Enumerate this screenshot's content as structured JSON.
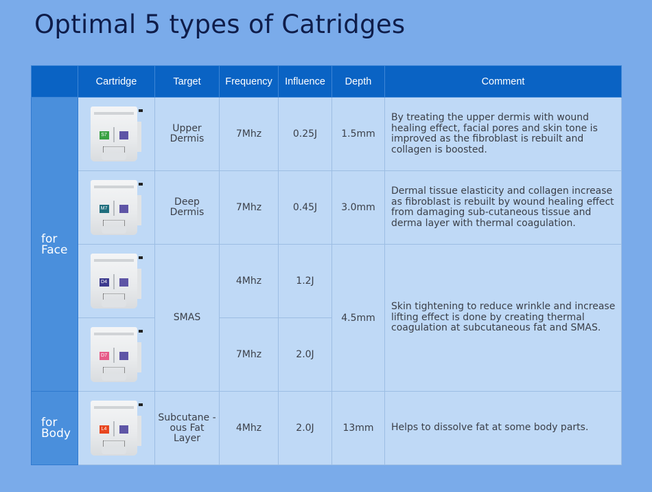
{
  "title": "Optimal 5 types of Catridges",
  "headers": {
    "group": "",
    "cartridge": "Cartridge",
    "target": "Target",
    "frequency": "Frequency",
    "influence": "Influence",
    "depth": "Depth",
    "comment": "Comment"
  },
  "groups": {
    "face": "for Face",
    "body": "for Body"
  },
  "rows": [
    {
      "code": "S7",
      "code_color": "#3aa143",
      "target": "Upper Dermis",
      "frequency": "7Mhz",
      "influence": "0.25J",
      "depth": "1.5mm",
      "comment": "By treating the upper dermis with wound healing effect, facial pores and skin tone is improved as the fibroblast is rebuilt and collagen is boosted."
    },
    {
      "code": "M7",
      "code_color": "#1f6e7e",
      "target": "Deep Dermis",
      "frequency": "7Mhz",
      "influence": "0.45J",
      "depth": "3.0mm",
      "comment": "Dermal tissue elasticity and collagen increase as fibroblast is rebuilt by wound healing effect from damaging sub-cutaneous tissue and derma layer with thermal coagulation."
    },
    {
      "code": "D4",
      "code_color": "#3c3a8e",
      "target": "SMAS",
      "frequency": "4Mhz",
      "influence": "1.2J",
      "depth": "4.5mm",
      "comment": "Skin tightening to reduce wrinkle and increase lifting effect is done by creating thermal coagulation at subcutaneous fat and SMAS."
    },
    {
      "code": "D7",
      "code_color": "#e65a88",
      "frequency": "7Mhz",
      "influence": "2.0J"
    },
    {
      "code": "L4",
      "code_color": "#e8461f",
      "target": "Subcutane - ous Fat Layer",
      "frequency": "4Mhz",
      "influence": "2.0J",
      "depth": "13mm",
      "comment": "Helps to dissolve fat at some body parts."
    }
  ],
  "colors": {
    "background": "#7aabea",
    "header": "#0a63c4",
    "group_cell": "#4a8fdc",
    "cell": "#bfd9f6",
    "square_purple": "#5e55a6"
  }
}
